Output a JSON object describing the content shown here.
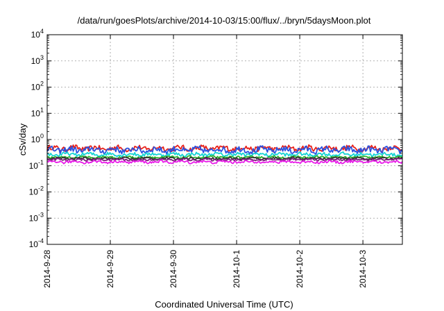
{
  "chart_data": {
    "type": "line",
    "title": "/data/run/goesPlots/archive/2014-10-03/15:00/flux/../bryn/5daysMoon.plot",
    "xlabel": "Coordinated Universal Time (UTC)",
    "ylabel": "cSv/day",
    "y_scale": "log",
    "ylim": [
      0.0001,
      10000
    ],
    "xlim": [
      "2014-09-28T00:00",
      "2014-10-03T15:00"
    ],
    "grid": true,
    "legend": "none",
    "x_ticks": [
      "2014-9-28",
      "2014-9-29",
      "2014-9-30",
      "2014-10-1",
      "2014-10-2",
      "2014-10-3"
    ],
    "y_ticks": [
      {
        "base": "10",
        "exp": "4",
        "value": 10000
      },
      {
        "base": "10",
        "exp": "3",
        "value": 1000
      },
      {
        "base": "10",
        "exp": "2",
        "value": 100
      },
      {
        "base": "10",
        "exp": "1",
        "value": 10
      },
      {
        "base": "10",
        "exp": "0",
        "value": 1
      },
      {
        "base": "10",
        "exp": "-1",
        "value": 0.1
      },
      {
        "base": "10",
        "exp": "-2",
        "value": 0.01
      },
      {
        "base": "10",
        "exp": "-3",
        "value": 0.001
      },
      {
        "base": "10",
        "exp": "-4",
        "value": 0.0001
      }
    ],
    "series": [
      {
        "color": "#e8211a",
        "level": 0.46,
        "jitter": 0.12,
        "x": [
          "2014-09-28T00:00",
          "2014-10-03T15:00"
        ]
      },
      {
        "color": "#2b52e0",
        "level": 0.4,
        "jitter": 0.14,
        "x": [
          "2014-09-28T00:00",
          "2014-10-03T15:00"
        ]
      },
      {
        "color": "#14d4d4",
        "level": 0.27,
        "jitter": 0.08,
        "x": [
          "2014-09-28T00:00",
          "2014-10-03T15:00"
        ]
      },
      {
        "color": "#2db22d",
        "level": 0.21,
        "jitter": 0.05,
        "x": [
          "2014-09-28T00:00",
          "2014-10-03T15:00"
        ]
      },
      {
        "color": "#333333",
        "level": 0.19,
        "jitter": 0.05,
        "x": [
          "2014-09-28T00:00",
          "2014-10-03T15:00"
        ]
      },
      {
        "color": "#7a1f7a",
        "level": 0.17,
        "jitter": 0.05,
        "x": [
          "2014-09-28T00:00",
          "2014-10-03T15:00"
        ]
      },
      {
        "color": "#e81ae8",
        "level": 0.14,
        "jitter": 0.06,
        "x": [
          "2014-09-28T00:00",
          "2014-10-03T15:00"
        ]
      }
    ]
  }
}
